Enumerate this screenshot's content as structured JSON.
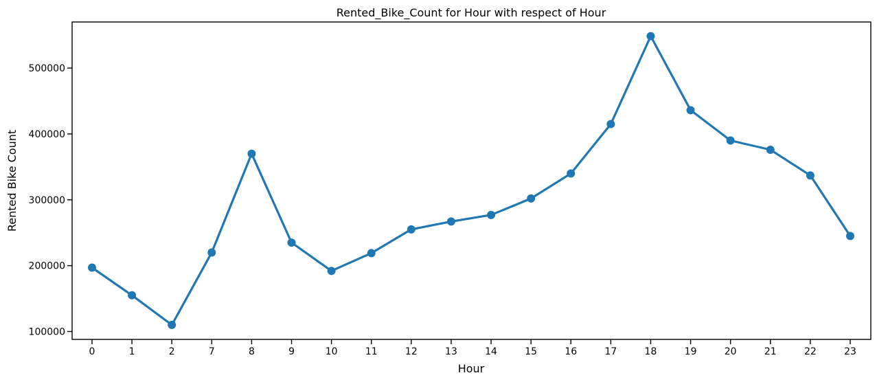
{
  "chart_data": {
    "type": "line",
    "title": "Rented_Bike_Count for Hour with respect of Hour",
    "xlabel": "Hour",
    "ylabel": "Rented Bike Count",
    "categories": [
      "0",
      "1",
      "2",
      "7",
      "8",
      "9",
      "10",
      "11",
      "12",
      "13",
      "14",
      "15",
      "16",
      "17",
      "18",
      "19",
      "20",
      "21",
      "22",
      "23"
    ],
    "series": [
      {
        "values": [
          197000,
          155000,
          110000,
          220000,
          370000,
          235000,
          192000,
          219000,
          255000,
          267000,
          277000,
          302000,
          340000,
          415000,
          548500,
          436000,
          390000,
          376000,
          337000,
          245000
        ]
      }
    ],
    "ylim": [
      88000,
      570000
    ],
    "yticks": [
      100000,
      200000,
      300000,
      400000,
      500000
    ],
    "grid": false,
    "legend": "none",
    "color": "#1f77b4"
  }
}
